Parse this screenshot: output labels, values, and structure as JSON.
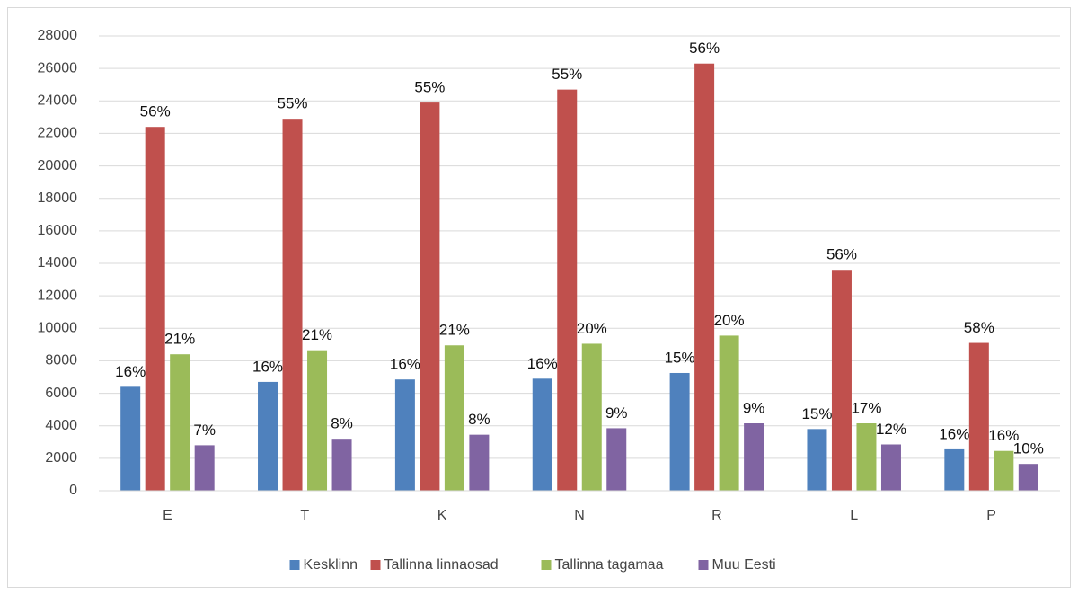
{
  "chart_data": {
    "type": "bar",
    "categories": [
      "E",
      "T",
      "K",
      "N",
      "R",
      "L",
      "P"
    ],
    "series": [
      {
        "name": "Kesklinn",
        "color": "#4f81bd",
        "values": [
          6400,
          6700,
          6850,
          6900,
          7250,
          3800,
          2550
        ],
        "share_labels": [
          "16%",
          "16%",
          "16%",
          "16%",
          "15%",
          "15%",
          "16%"
        ]
      },
      {
        "name": "Tallinna linnaosad",
        "color": "#c0504d",
        "values": [
          22400,
          22900,
          23900,
          24700,
          26300,
          13600,
          9100
        ],
        "share_labels": [
          "56%",
          "55%",
          "55%",
          "55%",
          "56%",
          "56%",
          "58%"
        ]
      },
      {
        "name": "Tallinna tagamaa",
        "color": "#9bbb59",
        "values": [
          8400,
          8650,
          8950,
          9050,
          9550,
          4150,
          2450
        ],
        "share_labels": [
          "21%",
          "21%",
          "21%",
          "20%",
          "20%",
          "17%",
          "16%"
        ]
      },
      {
        "name": "Muu Eesti",
        "color": "#8064a2",
        "values": [
          2800,
          3200,
          3450,
          3850,
          4150,
          2850,
          1650
        ],
        "share_labels": [
          "7%",
          "8%",
          "8%",
          "9%",
          "9%",
          "12%",
          "10%"
        ]
      }
    ],
    "ylim": [
      0,
      28000
    ],
    "yticks": [
      0,
      2000,
      4000,
      6000,
      8000,
      10000,
      12000,
      14000,
      16000,
      18000,
      20000,
      22000,
      24000,
      26000,
      28000
    ],
    "grid": true,
    "legend": "bottom"
  }
}
